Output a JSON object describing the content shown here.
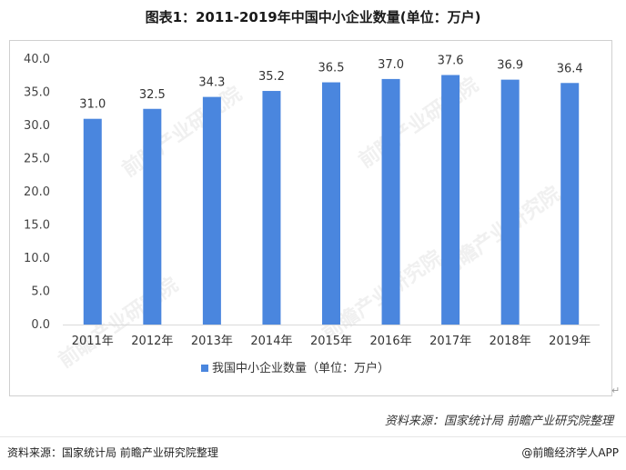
{
  "header": {
    "title": "图表1：2011-2019年中国中小企业数量(单位：万户)"
  },
  "chart_data": {
    "type": "bar",
    "title": "图表1：2011-2019年中国中小企业数量(单位：万户)",
    "categories": [
      "2011年",
      "2012年",
      "2013年",
      "2014年",
      "2015年",
      "2016年",
      "2017年",
      "2018年",
      "2019年"
    ],
    "values": [
      31.0,
      32.5,
      34.3,
      35.2,
      36.5,
      37.0,
      37.6,
      36.9,
      36.4
    ],
    "data_labels": [
      "31.0",
      "32.5",
      "34.3",
      "35.2",
      "36.5",
      "37.0",
      "37.6",
      "36.9",
      "36.4"
    ],
    "y_ticks": [
      "0.0",
      "5.0",
      "10.0",
      "15.0",
      "20.0",
      "25.0",
      "30.0",
      "35.0",
      "40.0"
    ],
    "ylim": [
      0,
      40
    ],
    "xlabel": "",
    "ylabel": "",
    "legend": {
      "label": "我国中小企业数量（单位：万户）",
      "position": "bottom-center"
    },
    "series_color": "#4a86de",
    "grid": false
  },
  "watermark": {
    "text": "前瞻产业研究院"
  },
  "source": {
    "italic_text": "资料来源：国家统计局 前瞻产业研究院整理"
  },
  "footer": {
    "left": "资料来源：国家统计局 前瞻产业研究院整理",
    "right": "@前瞻经济学人APP"
  }
}
